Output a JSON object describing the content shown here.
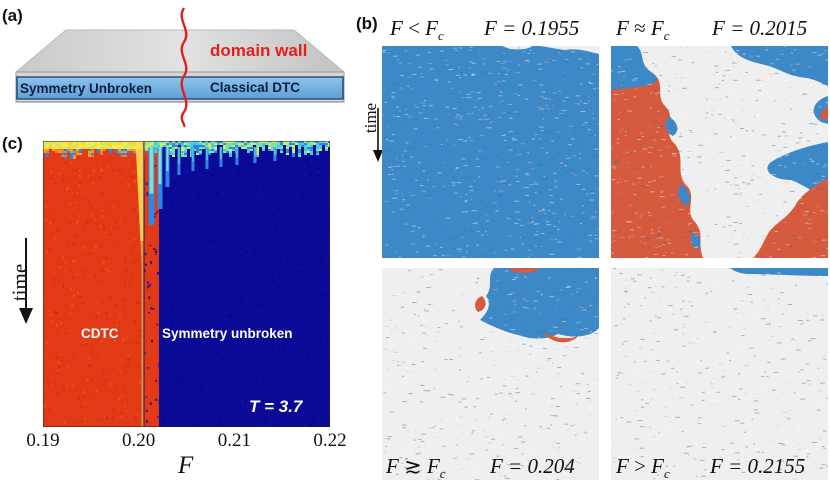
{
  "panel_a": {
    "label": "(a)",
    "left_region": "Symmetry Unbroken",
    "right_region": "Classical DTC",
    "wall_label": "domain wall",
    "colors": {
      "wall": "#e0201c",
      "region_fill": "#7cb6e6",
      "slab_top": "#d6d6d6"
    }
  },
  "panel_b": {
    "label": "(b)",
    "time_label": "time",
    "subpanels": [
      {
        "cond_F": "F",
        "cond_op": "<",
        "cond_Fc": "F",
        "cond_sub": "c",
        "value_text": "F = 0.1955"
      },
      {
        "cond_F": "F",
        "cond_op": "≈",
        "cond_Fc": "F",
        "cond_sub": "c",
        "value_text": "F = 0.2015"
      },
      {
        "cond_F": "F",
        "cond_op": "≳",
        "cond_Fc": "F",
        "cond_sub": "c",
        "value_text": "F = 0.204"
      },
      {
        "cond_F": "F",
        "cond_op": ">",
        "cond_Fc": "F",
        "cond_sub": "c",
        "value_text": "F = 0.2155"
      }
    ],
    "colors": {
      "blue": "#3d88c6",
      "red": "#d55a3e",
      "white": "#efefef"
    }
  },
  "panel_c": {
    "label": "(c)",
    "time_label": "time",
    "left_region": "CDTC",
    "right_region": "Symmetry unbroken",
    "temperature": "T = 3.7",
    "x_axis_label": "F",
    "x_ticks": [
      "0.19",
      "0.20",
      "0.21",
      "0.22"
    ],
    "colors": {
      "cdtc": "#e23a16",
      "unbroken": "#0a0a96",
      "boundary": "#ffe04a"
    }
  },
  "chart_data": {
    "type": "heatmap",
    "title": "",
    "xlabel": "F",
    "ylabel": "time",
    "xlim": [
      0.19,
      0.22
    ],
    "x_ticks": [
      0.19,
      0.2,
      0.21,
      0.22
    ],
    "critical_F": 0.2005,
    "annotations": [
      "CDTC",
      "Symmetry unbroken",
      "T = 3.7"
    ]
  }
}
